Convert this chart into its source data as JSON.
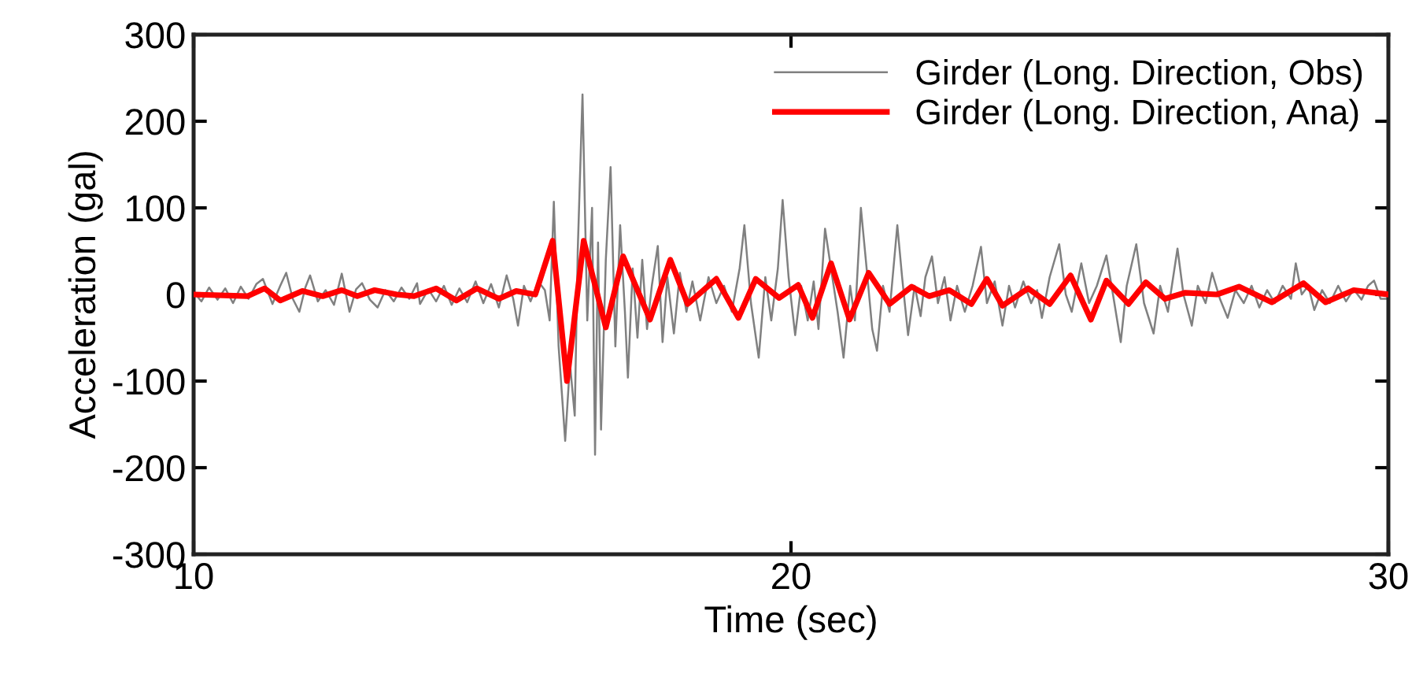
{
  "chart_data": {
    "type": "line",
    "xlabel": "Time (sec)",
    "ylabel": "Acceleration (gal)",
    "xlim": [
      10,
      30
    ],
    "xticks": [
      10,
      20,
      30
    ],
    "ylim": [
      -300,
      300
    ],
    "yticks": [
      {
        "value": -300,
        "label": "-300"
      },
      {
        "value": -200,
        "label": "-200"
      },
      {
        "value": -100,
        "label": "-100"
      },
      0,
      100,
      200,
      300
    ],
    "grid": false,
    "legend": "top right",
    "marker": "none",
    "line_style": "solid",
    "series": [
      {
        "name": "Girder (Long. Direction, Obs)",
        "color": "#808080",
        "x": [
          10.0,
          10.13,
          10.26,
          10.4,
          10.53,
          10.66,
          10.79,
          10.92,
          11.05,
          11.16,
          11.32,
          11.45,
          11.55,
          11.66,
          11.77,
          11.87,
          11.95,
          12.08,
          12.21,
          12.35,
          12.48,
          12.61,
          12.72,
          12.82,
          12.95,
          13.08,
          13.21,
          13.35,
          13.48,
          13.61,
          13.74,
          13.79,
          13.93,
          14.06,
          14.19,
          14.32,
          14.45,
          14.58,
          14.72,
          14.85,
          14.98,
          15.11,
          15.24,
          15.35,
          15.43,
          15.53,
          15.64,
          15.77,
          15.88,
          15.96,
          16.03,
          16.11,
          16.22,
          16.3,
          16.38,
          16.43,
          16.51,
          16.59,
          16.67,
          16.72,
          16.77,
          16.82,
          16.9,
          16.98,
          17.06,
          17.14,
          17.22,
          17.27,
          17.35,
          17.43,
          17.51,
          17.59,
          17.67,
          17.77,
          17.85,
          17.93,
          18.04,
          18.14,
          18.25,
          18.35,
          18.48,
          18.62,
          18.75,
          18.88,
          19.01,
          19.14,
          19.22,
          19.33,
          19.46,
          19.57,
          19.67,
          19.78,
          19.86,
          19.96,
          20.07,
          20.17,
          20.28,
          20.38,
          20.46,
          20.57,
          20.67,
          20.78,
          20.88,
          20.99,
          21.07,
          21.17,
          21.28,
          21.36,
          21.44,
          21.54,
          21.65,
          21.78,
          21.86,
          21.96,
          22.07,
          22.17,
          22.25,
          22.36,
          22.46,
          22.57,
          22.67,
          22.78,
          22.91,
          23.04,
          23.18,
          23.28,
          23.41,
          23.54,
          23.65,
          23.75,
          23.89,
          24.02,
          24.12,
          24.2,
          24.33,
          24.49,
          24.6,
          24.7,
          24.86,
          24.99,
          25.12,
          25.28,
          25.39,
          25.52,
          25.62,
          25.78,
          25.91,
          26.07,
          26.18,
          26.31,
          26.47,
          26.57,
          26.71,
          26.81,
          26.94,
          27.05,
          27.18,
          27.31,
          27.44,
          27.58,
          27.71,
          27.84,
          27.97,
          28.1,
          28.23,
          28.37,
          28.45,
          28.55,
          28.66,
          28.76,
          28.89,
          29.02,
          29.16,
          29.29,
          29.42,
          29.55,
          29.66,
          29.76,
          29.87,
          30.0
        ],
        "values": [
          3,
          -8,
          8,
          -6,
          7,
          -10,
          9,
          -5,
          12,
          18,
          -11,
          10,
          25,
          -5,
          -20,
          8,
          22,
          -8,
          5,
          -12,
          24,
          -20,
          6,
          13,
          -6,
          -15,
          5,
          -8,
          8,
          -5,
          13,
          -11,
          6,
          -8,
          10,
          -12,
          7,
          -9,
          15,
          -10,
          12,
          -15,
          22,
          -5,
          -36,
          10,
          -8,
          15,
          5,
          -30,
          107,
          -60,
          -169,
          -80,
          -140,
          50,
          231,
          -30,
          100,
          -185,
          60,
          -156,
          40,
          147,
          -60,
          80,
          -20,
          -96,
          30,
          -50,
          40,
          -40,
          10,
          56,
          -55,
          20,
          -45,
          25,
          -20,
          15,
          -30,
          20,
          -10,
          10,
          -20,
          30,
          80,
          -10,
          -73,
          20,
          -30,
          30,
          109,
          20,
          -47,
          10,
          -30,
          15,
          -40,
          76,
          30,
          -20,
          -73,
          10,
          -30,
          100,
          20,
          -40,
          -65,
          10,
          -20,
          80,
          20,
          -47,
          10,
          -25,
          20,
          44,
          -10,
          20,
          -30,
          10,
          -20,
          10,
          55,
          -10,
          15,
          -36,
          10,
          -15,
          15,
          -10,
          5,
          -27,
          20,
          58,
          0,
          -20,
          36,
          -10,
          10,
          45,
          0,
          -55,
          10,
          58,
          -10,
          -45,
          10,
          -20,
          53,
          0,
          -36,
          10,
          -10,
          25,
          -5,
          -27,
          5,
          -10,
          10,
          -15,
          5,
          -10,
          10,
          -5,
          36,
          0,
          10,
          -18,
          5,
          -10,
          10,
          -8,
          6,
          -6,
          10,
          16,
          -5,
          -5
        ]
      },
      {
        "name": "Girder (Long. Direction, Ana)",
        "color": "#ff0000",
        "x": [
          10.0,
          10.9,
          11.19,
          11.45,
          11.82,
          12.16,
          12.48,
          12.74,
          13.03,
          13.4,
          13.69,
          14.06,
          14.4,
          14.74,
          15.11,
          15.4,
          15.72,
          16.01,
          16.25,
          16.53,
          16.9,
          17.19,
          17.64,
          17.98,
          18.27,
          18.75,
          19.12,
          19.41,
          19.8,
          20.12,
          20.36,
          20.67,
          20.98,
          21.3,
          21.65,
          22.02,
          22.31,
          22.65,
          23.02,
          23.28,
          23.54,
          23.97,
          24.33,
          24.68,
          25.02,
          25.28,
          25.65,
          25.94,
          26.26,
          26.6,
          27.13,
          27.5,
          28.05,
          28.58,
          28.95,
          29.42,
          30.0
        ],
        "values": [
          0,
          -2,
          7,
          -7,
          4,
          -2,
          5,
          -2,
          5,
          0,
          -2,
          7,
          -7,
          7,
          -5,
          4,
          0,
          62,
          -100,
          62,
          -38,
          44,
          -29,
          40,
          -11,
          18,
          -27,
          18,
          -4,
          11,
          -27,
          36,
          -29,
          25,
          -11,
          9,
          -2,
          5,
          -11,
          18,
          -13,
          7,
          -11,
          22,
          -29,
          16,
          -11,
          14,
          -5,
          2,
          0,
          9,
          -9,
          13,
          -9,
          5,
          0
        ]
      }
    ]
  }
}
